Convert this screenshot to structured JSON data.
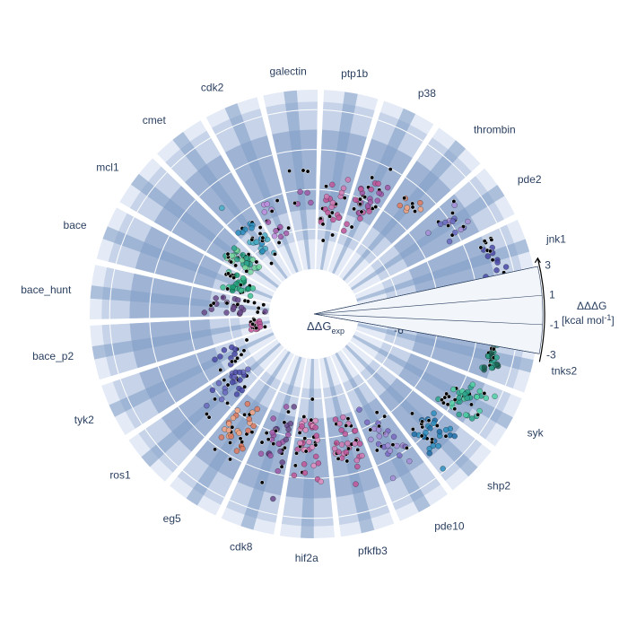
{
  "chart_data": {
    "type": "polar-scatter",
    "radial_axis": {
      "title_main": "ΔΔG",
      "title_sub": "exp",
      "range": [
        -8,
        1
      ],
      "tick_labels": [
        "-6",
        "-4",
        "-2",
        "0"
      ],
      "ticks": [
        -6,
        -4,
        -2,
        0
      ]
    },
    "ddd_scale": {
      "title": "ΔΔΔG",
      "unit": "[kcal mol",
      "unit_sup": "-1",
      "unit_end": "]",
      "tick_labels": [
        "3",
        "1",
        "-1",
        "-3"
      ],
      "ticks": [
        3,
        1,
        -1,
        -3
      ]
    },
    "categories": [
      {
        "name": "tnks2",
        "points": 32,
        "center": -1.0,
        "spread": 0.5,
        "colors": [
          "#000000",
          "#2ca58d",
          "#1b5e50"
        ]
      },
      {
        "name": "syk",
        "points": 45,
        "center": -1.5,
        "spread": 1.2,
        "colors": [
          "#000000",
          "#2ca58d",
          "#4fd1a5"
        ]
      },
      {
        "name": "shp2",
        "points": 36,
        "center": -2.0,
        "spread": 1.4,
        "colors": [
          "#000000",
          "#2c8fbf",
          "#1b6ea8"
        ]
      },
      {
        "name": "pde10",
        "points": 32,
        "center": -3.0,
        "spread": 1.6,
        "colors": [
          "#000000",
          "#a58fd8",
          "#7b6ac4"
        ]
      },
      {
        "name": "pfkfb3",
        "points": 40,
        "center": -3.5,
        "spread": 1.6,
        "colors": [
          "#000000",
          "#d27bb4",
          "#c2569a"
        ]
      },
      {
        "name": "hif2a",
        "points": 48,
        "center": -3.8,
        "spread": 2.0,
        "colors": [
          "#000000",
          "#c2569a",
          "#e38ec0"
        ]
      },
      {
        "name": "cdk8",
        "points": 36,
        "center": -3.8,
        "spread": 1.6,
        "colors": [
          "#000000",
          "#6a4a8c",
          "#a058a8"
        ]
      },
      {
        "name": "eg5",
        "points": 35,
        "center": -3.0,
        "spread": 1.4,
        "colors": [
          "#000000",
          "#e07a5f",
          "#f4a582"
        ]
      },
      {
        "name": "ros1",
        "points": 30,
        "center": -4.5,
        "spread": 1.6,
        "colors": [
          "#000000",
          "#6a6ac0",
          "#4a4aa8"
        ]
      },
      {
        "name": "tyk2",
        "points": 16,
        "center": -5.5,
        "spread": 1.6,
        "colors": [
          "#000000",
          "#4a4aa8"
        ]
      },
      {
        "name": "bace_p2",
        "points": 18,
        "center": -7.2,
        "spread": 0.3,
        "colors": [
          "#000000",
          "#c2569a"
        ]
      },
      {
        "name": "bace_hunt",
        "points": 32,
        "center": -6.2,
        "spread": 1.4,
        "colors": [
          "#000000",
          "#6a4a8c"
        ]
      },
      {
        "name": "bace",
        "points": 36,
        "center": -6.2,
        "spread": 0.8,
        "colors": [
          "#000000",
          "#1b9e77",
          "#3ec193"
        ]
      },
      {
        "name": "mcl1",
        "points": 40,
        "center": -5.8,
        "spread": 1.0,
        "colors": [
          "#000000",
          "#2ca58d",
          "#76d7a0"
        ]
      },
      {
        "name": "cmet",
        "points": 34,
        "center": -5.5,
        "spread": 1.4,
        "colors": [
          "#000000",
          "#2c8fbf",
          "#4ab0c8"
        ]
      },
      {
        "name": "cdk2",
        "points": 16,
        "center": -5.5,
        "spread": 1.6,
        "colors": [
          "#000000",
          "#a058a8",
          "#c28ee0"
        ]
      },
      {
        "name": "galectin",
        "points": 8,
        "center": -4.0,
        "spread": 2.5,
        "colors": [
          "#000000",
          "#a058a8"
        ]
      },
      {
        "name": "ptp1b",
        "points": 30,
        "center": -5.0,
        "spread": 1.6,
        "colors": [
          "#000000",
          "#c2569a",
          "#d27bb4"
        ]
      },
      {
        "name": "p38",
        "points": 38,
        "center": -4.0,
        "spread": 1.6,
        "colors": [
          "#000000",
          "#c2569a",
          "#a058a8"
        ]
      },
      {
        "name": "thrombin",
        "points": 10,
        "center": -3.0,
        "spread": 0.5,
        "colors": [
          "#000000",
          "#e07a5f",
          "#f4a582"
        ]
      },
      {
        "name": "pde2",
        "points": 20,
        "center": -1.8,
        "spread": 1.0,
        "colors": [
          "#000000",
          "#6a6ac0",
          "#a58fd8"
        ]
      },
      {
        "name": "jnk1",
        "points": 18,
        "center": -0.9,
        "spread": 0.6,
        "colors": [
          "#000000",
          "#4a4aa8"
        ]
      }
    ]
  }
}
